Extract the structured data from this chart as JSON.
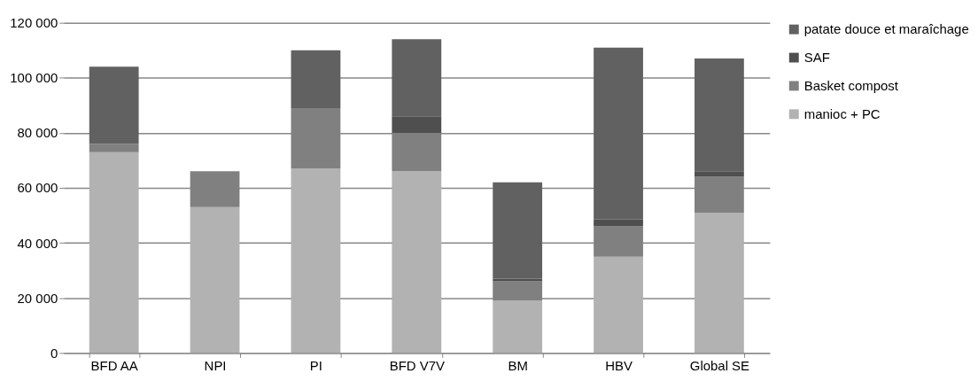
{
  "chart_data": {
    "type": "bar",
    "stacked": true,
    "categories": [
      "BFD AA",
      "NPI",
      "PI",
      "BFD V7V",
      "BM",
      "HBV",
      "Global SE"
    ],
    "series": [
      {
        "name": "manioc + PC",
        "color": "#b2b2b2",
        "values": [
          73000,
          53000,
          67000,
          66000,
          19000,
          35000,
          51000
        ]
      },
      {
        "name": "Basket compost",
        "color": "#808080",
        "values": [
          3000,
          13000,
          22000,
          14000,
          7000,
          11000,
          13000
        ]
      },
      {
        "name": "SAF",
        "color": "#4f4f4f",
        "values": [
          0,
          0,
          0,
          6000,
          1000,
          2500,
          2000
        ]
      },
      {
        "name": "patate douce et maraîchage",
        "color": "#616161",
        "values": [
          28000,
          0,
          21000,
          28000,
          35000,
          62500,
          41000
        ]
      }
    ],
    "ylim": [
      0,
      120000
    ],
    "yticks": [
      0,
      {
        "value": 20000,
        "label": "20 000"
      },
      {
        "value": 40000,
        "label": "40 000"
      },
      {
        "value": 60000,
        "label": "60 000"
      },
      {
        "value": 80000,
        "label": "80 000"
      },
      {
        "value": 100000,
        "label": "100 000"
      },
      {
        "value": 120000,
        "label": "120 000"
      }
    ],
    "grid": "y",
    "legend": "right"
  }
}
